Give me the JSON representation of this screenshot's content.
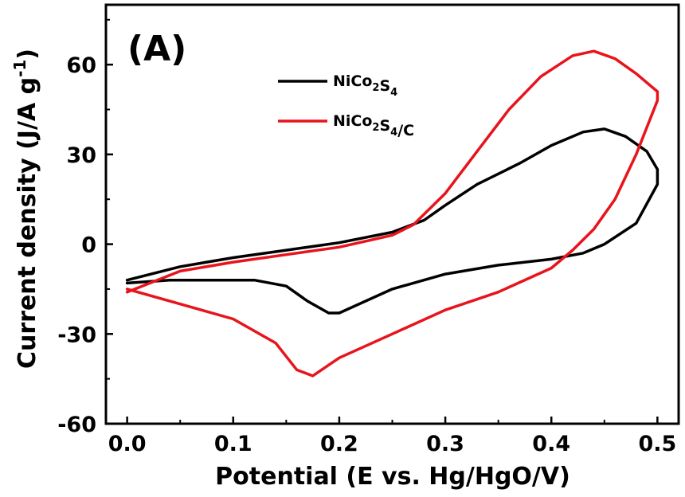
{
  "chart_data": {
    "type": "line",
    "panel_label": "(A)",
    "xlabel": "Potential (E vs. Hg/HgO/V)",
    "ylabel": "Current density (J/A g",
    "ylabel_sup": "-1",
    "ylabel_close": ")",
    "xlim": [
      -0.02,
      0.52
    ],
    "ylim": [
      -60,
      80
    ],
    "xticks": [
      0.0,
      0.1,
      0.2,
      0.3,
      0.4,
      0.5
    ],
    "xtick_labels": [
      "0.0",
      "0.1",
      "0.2",
      "0.3",
      "0.4",
      "0.5"
    ],
    "yticks": [
      -60,
      -30,
      0,
      30,
      60
    ],
    "ytick_labels": [
      "-60",
      "-30",
      "0",
      "30",
      "60"
    ],
    "grid": false,
    "legend_position": "top-center",
    "series": [
      {
        "name_parts": [
          "NiCo",
          "2",
          "S",
          "4",
          ""
        ],
        "color": "#000000",
        "points": [
          [
            0.0,
            -12
          ],
          [
            0.05,
            -7.5
          ],
          [
            0.1,
            -4.5
          ],
          [
            0.15,
            -2
          ],
          [
            0.2,
            0.5
          ],
          [
            0.25,
            4
          ],
          [
            0.28,
            8
          ],
          [
            0.3,
            13
          ],
          [
            0.33,
            20
          ],
          [
            0.37,
            27
          ],
          [
            0.4,
            33
          ],
          [
            0.43,
            37.5
          ],
          [
            0.45,
            38.5
          ],
          [
            0.47,
            36
          ],
          [
            0.49,
            31
          ],
          [
            0.5,
            25
          ],
          [
            0.5,
            20
          ],
          [
            0.48,
            7
          ],
          [
            0.45,
            0
          ],
          [
            0.43,
            -3
          ],
          [
            0.4,
            -5
          ],
          [
            0.35,
            -7
          ],
          [
            0.3,
            -10
          ],
          [
            0.25,
            -15
          ],
          [
            0.2,
            -23
          ],
          [
            0.19,
            -23
          ],
          [
            0.17,
            -19
          ],
          [
            0.15,
            -14
          ],
          [
            0.12,
            -12
          ],
          [
            0.08,
            -12
          ],
          [
            0.04,
            -12
          ],
          [
            0.0,
            -13
          ]
        ]
      },
      {
        "name_parts": [
          "NiCo",
          "2",
          "S",
          "4",
          "/C"
        ],
        "color": "#e8141c",
        "points": [
          [
            0.0,
            -16
          ],
          [
            0.05,
            -9
          ],
          [
            0.1,
            -6
          ],
          [
            0.15,
            -3.5
          ],
          [
            0.2,
            -1
          ],
          [
            0.25,
            3
          ],
          [
            0.27,
            6.5
          ],
          [
            0.3,
            17
          ],
          [
            0.33,
            31
          ],
          [
            0.36,
            45
          ],
          [
            0.39,
            56
          ],
          [
            0.42,
            63
          ],
          [
            0.44,
            64.5
          ],
          [
            0.46,
            62
          ],
          [
            0.48,
            57
          ],
          [
            0.5,
            51
          ],
          [
            0.5,
            48
          ],
          [
            0.48,
            30
          ],
          [
            0.46,
            15
          ],
          [
            0.44,
            5
          ],
          [
            0.42,
            -2
          ],
          [
            0.4,
            -8
          ],
          [
            0.35,
            -16
          ],
          [
            0.3,
            -22
          ],
          [
            0.25,
            -30
          ],
          [
            0.2,
            -38
          ],
          [
            0.175,
            -44
          ],
          [
            0.16,
            -42
          ],
          [
            0.14,
            -33
          ],
          [
            0.1,
            -25
          ],
          [
            0.05,
            -20
          ],
          [
            0.0,
            -15
          ]
        ]
      }
    ]
  }
}
